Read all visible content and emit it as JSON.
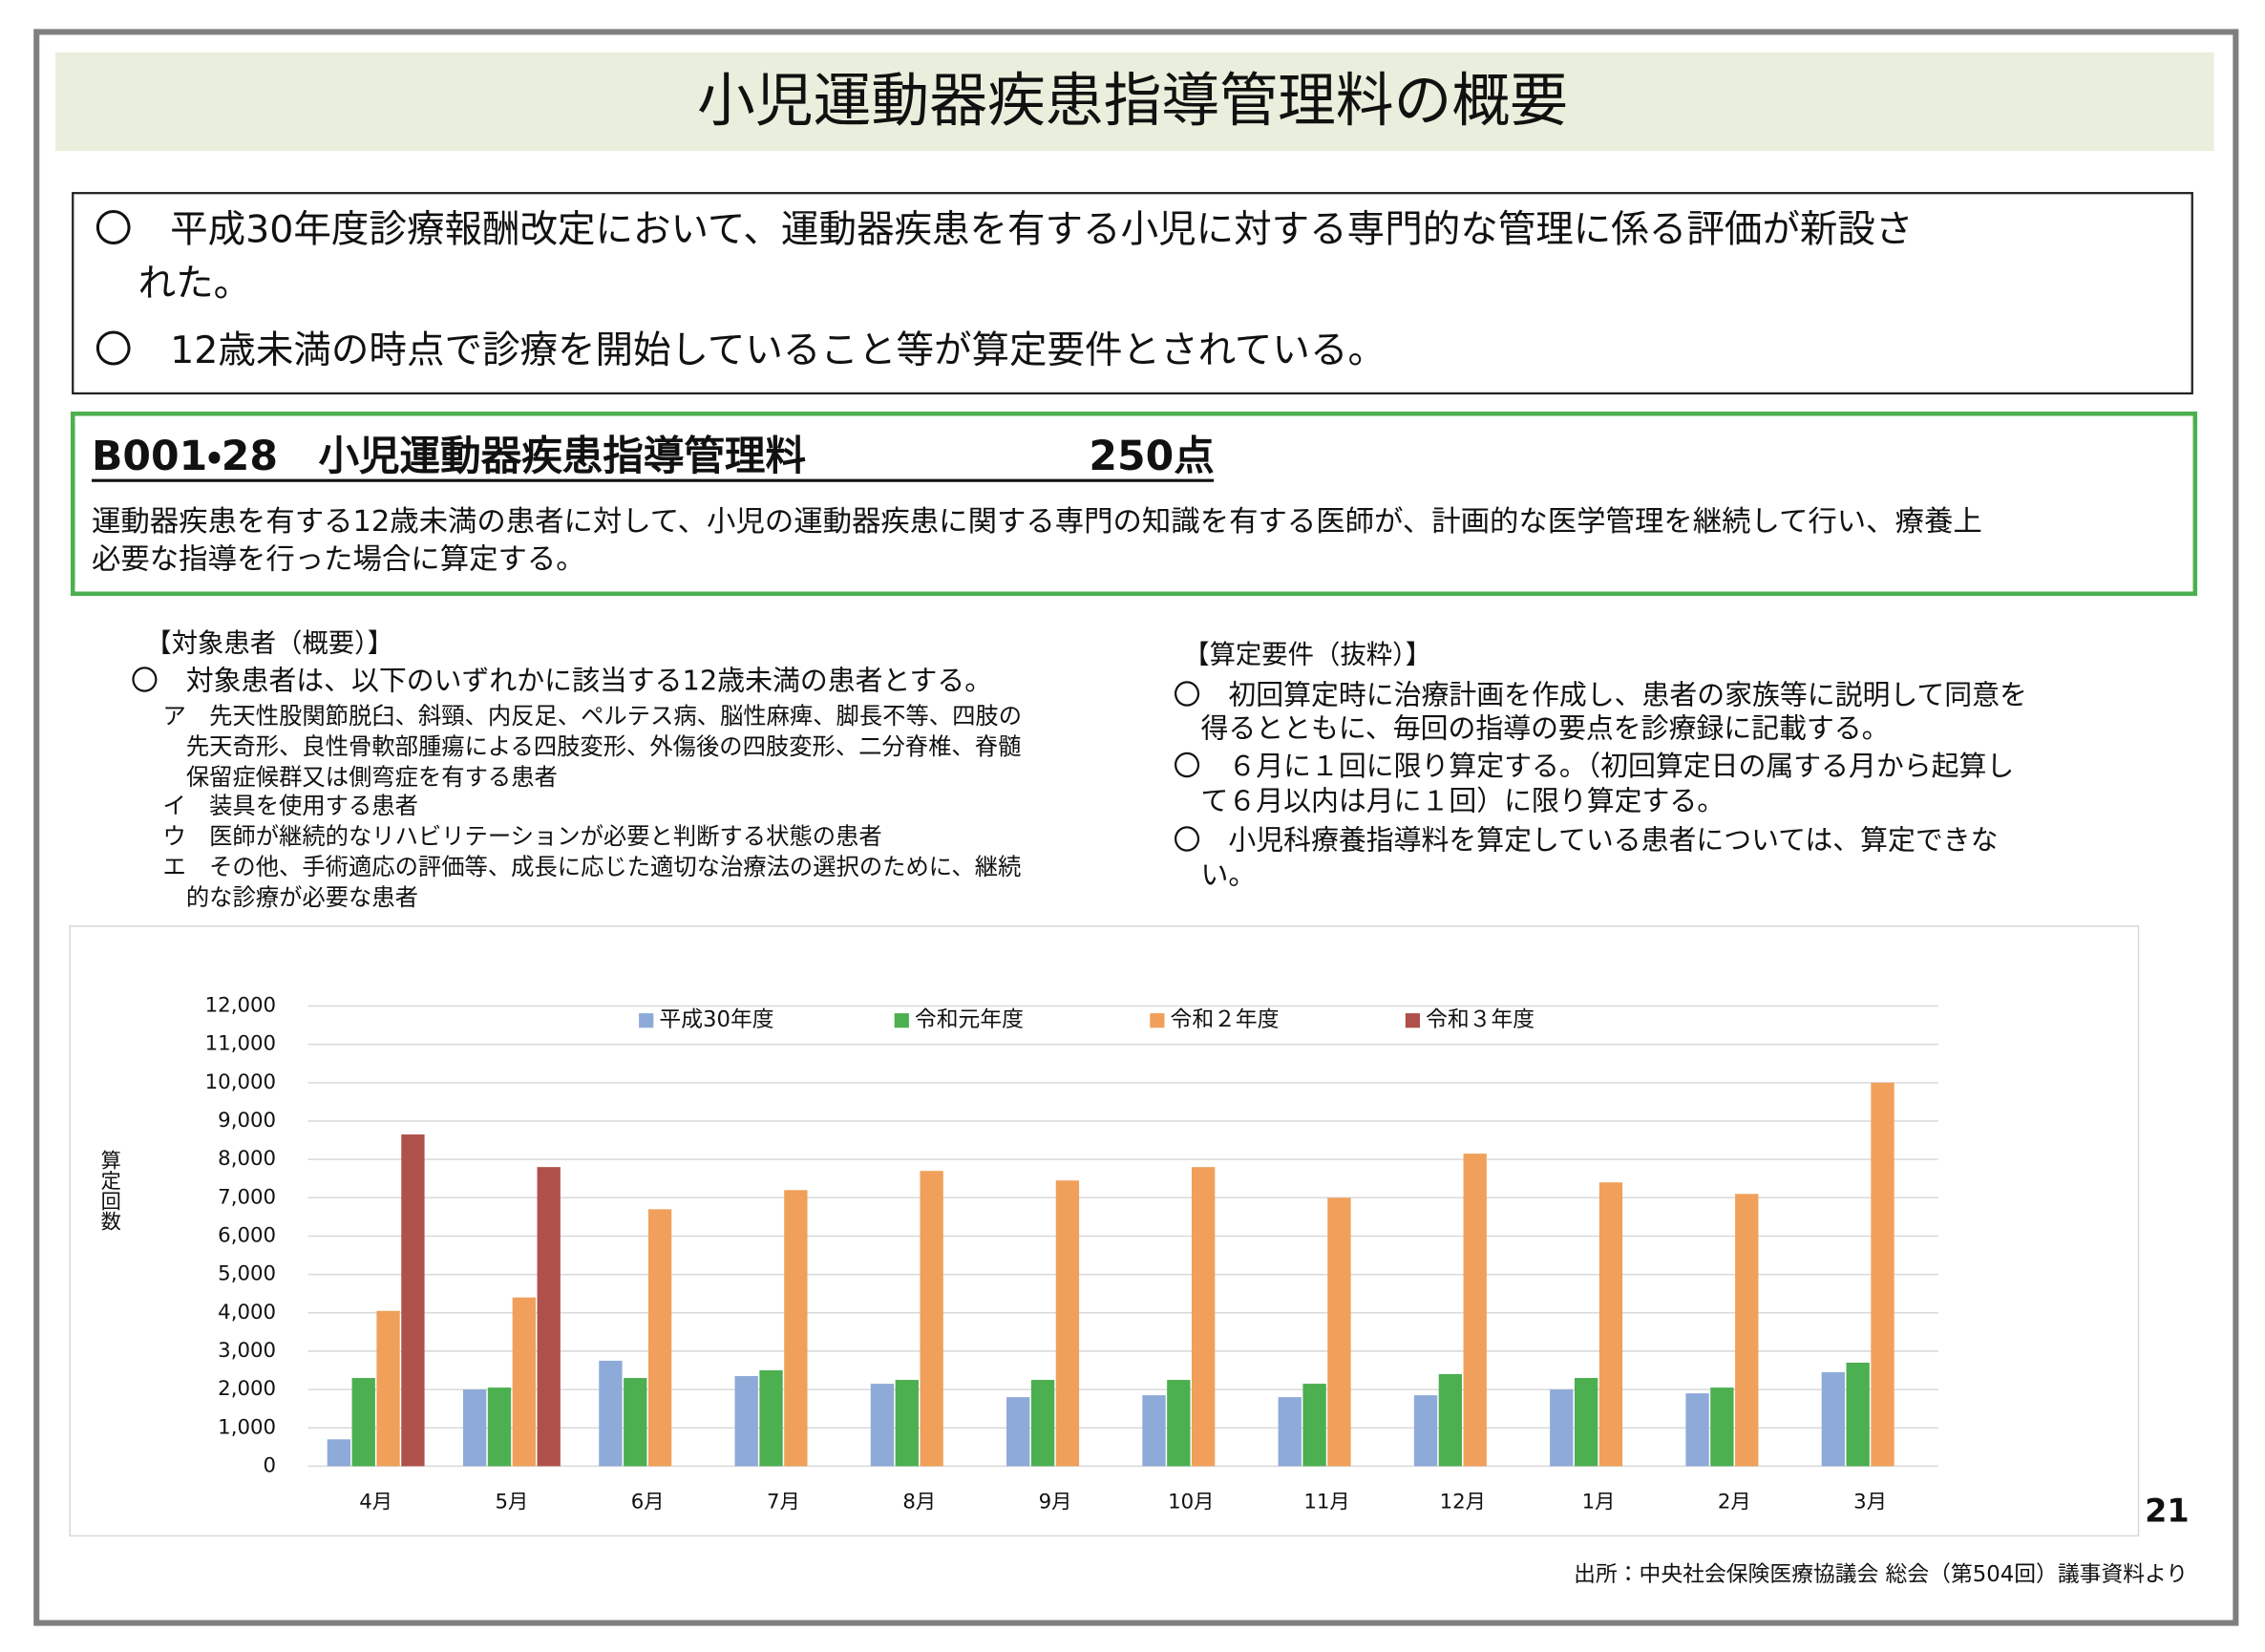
{
  "header": {
    "title": "小児運動器疾患指導管理料の概要"
  },
  "summary": [
    [
      "〇　平成30年度診療報酬改定において、運動器疾患を有する小児に対する専門的な管理に係る評価が新設さ",
      "れた。"
    ],
    [
      "〇　12歳未満の時点で診療を開始していること等が算定要件とされている。"
    ]
  ],
  "fee_box": {
    "code_name": "B001・28　小児運動器疾患指導管理料",
    "points": "250点",
    "description": [
      "運動器疾患を有する12歳未満の患者に対して、小児の運動器疾患に関する専門の知識を有する医師が、計画的な医学管理を継続して行い、療養上",
      "必要な指導を行った場合に算定する。"
    ]
  },
  "target_patients": {
    "heading": "【対象患者（概要）】",
    "intro": "〇　対象患者は、以下のいずれかに該当する12歳未満の患者とする。",
    "items": [
      [
        "ア　先天性股関節脱臼、斜頸、内反足、ペルテス病、脳性麻痺、脚長不等、四肢の",
        "先天奇形、良性骨軟部腫瘍による四肢変形、外傷後の四肢変形、二分脊椎、脊髄",
        "保留症候群又は側弯症を有する患者"
      ],
      [
        "イ　装具を使用する患者"
      ],
      [
        "ウ　医師が継続的なリハビリテーションが必要と判断する状態の患者"
      ],
      [
        "エ　その他、手術適応の評価等、成長に応じた適切な治療法の選択のために、継続",
        "的な診療が必要な患者"
      ]
    ]
  },
  "requirements": {
    "heading": "【算定要件（抜粋）】",
    "items": [
      [
        "〇　初回算定時に治療計画を作成し、患者の家族等に説明して同意を",
        "得るとともに、毎回の指導の要点を診療録に記載する。"
      ],
      [
        "〇　６月に１回に限り算定する。（初回算定日の属する月から起算し",
        "て６月以内は月に１回）に限り算定する。"
      ],
      [
        "〇　小児科療養指導料を算定している患者については、算定できな",
        "い。"
      ]
    ]
  },
  "chart_data": {
    "type": "bar",
    "y_label": "算定回数",
    "categories": [
      "4月",
      "5月",
      "6月",
      "7月",
      "8月",
      "9月",
      "10月",
      "11月",
      "12月",
      "1月",
      "2月",
      "3月"
    ],
    "series": [
      {
        "name": "平成30年度",
        "color": "#8eaad8",
        "values": [
          700,
          2000,
          2750,
          2350,
          2150,
          1800,
          1850,
          1800,
          1850,
          2000,
          1900,
          2450
        ]
      },
      {
        "name": "令和元年度",
        "color": "#4caf50",
        "values": [
          2300,
          2050,
          2300,
          2500,
          2250,
          2250,
          2250,
          2150,
          2400,
          2300,
          2050,
          2700
        ]
      },
      {
        "name": "令和２年度",
        "color": "#f0a05a",
        "values": [
          4050,
          4400,
          6700,
          7200,
          7700,
          7450,
          7800,
          7000,
          8150,
          7400,
          7100,
          10000
        ]
      },
      {
        "name": "令和３年度",
        "color": "#b0504a",
        "values": [
          8650,
          7800,
          null,
          null,
          null,
          null,
          null,
          null,
          null,
          null,
          null,
          null
        ]
      }
    ],
    "ylim": [
      0,
      12000
    ],
    "yticks": [
      0,
      {
        "value": 1000,
        "label": "1,000"
      },
      {
        "value": 2000,
        "label": "2,000"
      },
      {
        "value": 3000,
        "label": "3,000"
      },
      {
        "value": 4000,
        "label": "4,000"
      },
      {
        "value": 5000,
        "label": "5,000"
      },
      {
        "value": 6000,
        "label": "6,000"
      },
      {
        "value": 7000,
        "label": "7,000"
      },
      {
        "value": 8000,
        "label": "8,000"
      },
      {
        "value": 9000,
        "label": "9,000"
      },
      {
        "value": 10000,
        "label": "10,000"
      },
      {
        "value": 11000,
        "label": "11,000"
      },
      {
        "value": 12000,
        "label": "12,000"
      }
    ],
    "grid": true,
    "legend": "top"
  },
  "page_number": "21",
  "source": "出所：中央社会保険医療協議会 総会（第504回）議事資料より"
}
